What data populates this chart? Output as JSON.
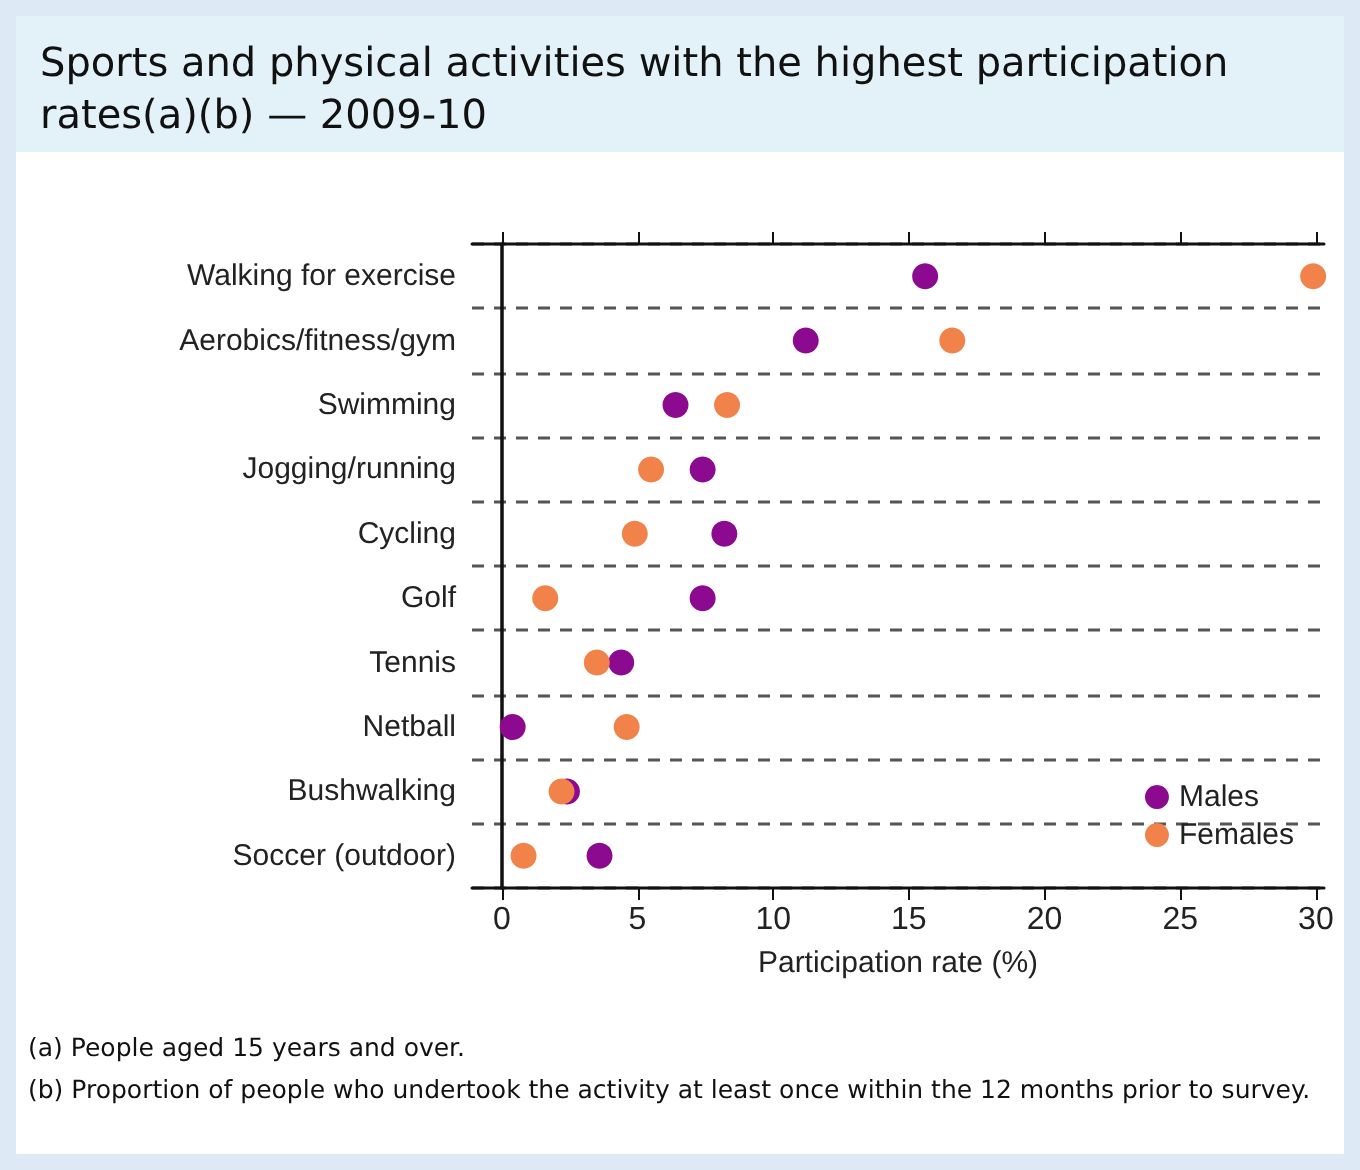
{
  "chart_data": {
    "type": "scatter",
    "title": "Sports and physical activities with the highest participation rates(a)(b) — 2009-10",
    "xlabel": "Participation rate (%)",
    "categories": [
      "Walking for exercise",
      "Aerobics/fitness/gym",
      "Swimming",
      "Jogging/running",
      "Cycling",
      "Golf",
      "Tennis",
      "Netball",
      "Bushwalking",
      "Soccer (outdoor)"
    ],
    "orientation": "horizontal",
    "series": [
      {
        "name": "Males",
        "color": "#8b0a8f",
        "values": [
          15.6,
          11.2,
          6.4,
          7.4,
          8.2,
          7.4,
          4.4,
          0.4,
          2.4,
          3.6
        ]
      },
      {
        "name": "Females",
        "color": "#f0824a",
        "values": [
          29.9,
          16.6,
          8.3,
          5.5,
          4.9,
          1.6,
          3.5,
          4.6,
          2.2,
          0.8
        ]
      }
    ],
    "xlim": [
      -1.1,
      30.3
    ],
    "xticks": [
      0,
      5,
      10,
      15,
      20,
      25,
      30
    ],
    "grid": "y",
    "line_style": "dashed",
    "marker": "circle",
    "legend": "bottom right",
    "annotations": [
      "(a) People aged 15 years and over.",
      "(b) Proportion of people who undertook the activity at least once within the 12 months prior to survey."
    ]
  }
}
